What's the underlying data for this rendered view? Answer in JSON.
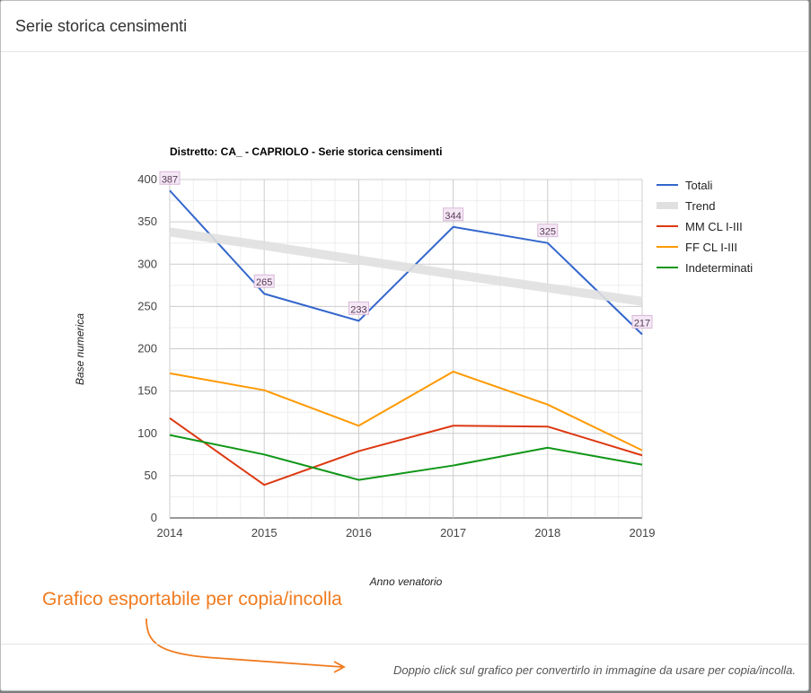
{
  "dialog": {
    "title": "Serie storica censimenti",
    "footer_note": "Doppio click sul grafico per convertirlo in immagine da usare per copia/incolla."
  },
  "annotation": {
    "text": "Grafico esportabile per copia/incolla",
    "color": "#f07b20"
  },
  "chart_data": {
    "type": "line",
    "title": "Distretto: CA_ - CAPRIOLO - Serie storica censimenti",
    "xlabel": "Anno venatorio",
    "ylabel": "Base numerica",
    "x": [
      2014,
      2015,
      2016,
      2017,
      2018,
      2019
    ],
    "ylim": [
      0,
      400
    ],
    "yticks": [
      0,
      50,
      100,
      150,
      200,
      250,
      300,
      350,
      400
    ],
    "grid": true,
    "legend_position": "right",
    "series": [
      {
        "name": "Totali",
        "color": "#3366cc",
        "values": [
          387,
          265,
          233,
          344,
          325,
          217
        ],
        "labels": true
      },
      {
        "name": "Trend",
        "color": "#e0e0e0",
        "values": [
          338,
          322,
          305,
          288,
          272,
          256
        ],
        "trend": true
      },
      {
        "name": "MM CL I-III",
        "color": "#dc3912",
        "values": [
          118,
          39,
          79,
          109,
          108,
          74
        ]
      },
      {
        "name": "FF CL I-III",
        "color": "#ff9900",
        "values": [
          171,
          151,
          109,
          173,
          134,
          80
        ]
      },
      {
        "name": "Indeterminati",
        "color": "#109618",
        "values": [
          98,
          75,
          45,
          62,
          83,
          63
        ]
      }
    ]
  }
}
